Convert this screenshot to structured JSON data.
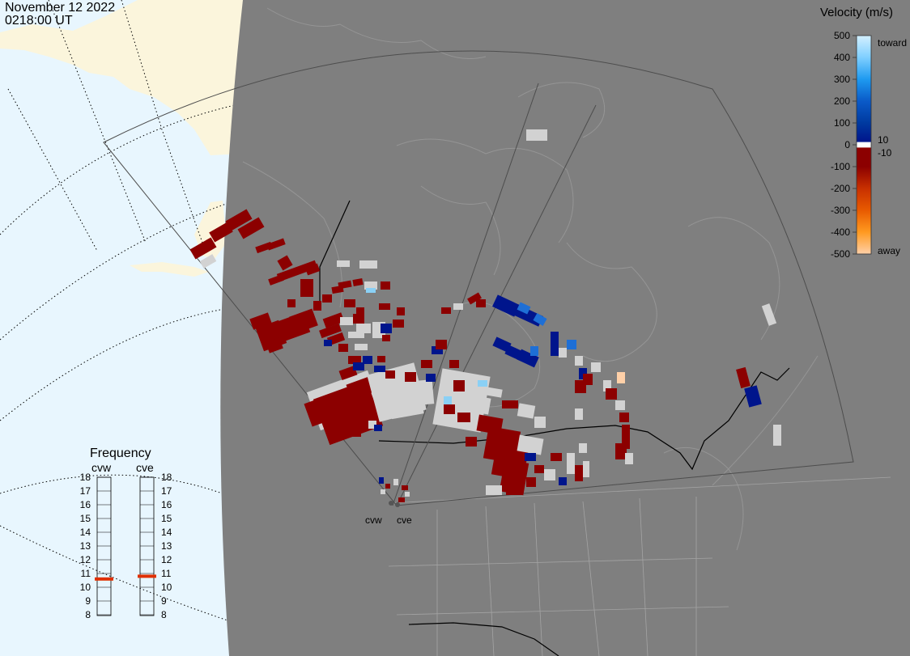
{
  "header": {
    "date": "November 12 2022",
    "time": "0218:00 UT"
  },
  "colors": {
    "ocean": "#e8f6fe",
    "land_outside": "#fbf5dc",
    "map_bg": "#7f7f7f",
    "coast": "#959595",
    "ground_scatter": "#d2d2d2",
    "neg_low": "#8c0000",
    "pos_low": "#00158c",
    "pos_mid": "#1e6fd6",
    "pos_high": "#8ad0f5",
    "away": "#ffd0a8",
    "freq_marker": "#e03000"
  },
  "velocity_scale": {
    "title": "Velocity (m/s)",
    "ticks": [
      "500",
      "400",
      "300",
      "200",
      "100",
      "0",
      "-100",
      "-200",
      "-300",
      "-400",
      "-500"
    ],
    "right_labels": [
      "toward",
      "10",
      "-10",
      "away"
    ],
    "stops": [
      {
        "v": 500,
        "color": "#d4f0ff"
      },
      {
        "v": 400,
        "color": "#7fcfff"
      },
      {
        "v": 300,
        "color": "#1e9af0"
      },
      {
        "v": 200,
        "color": "#0a5ac8"
      },
      {
        "v": 100,
        "color": "#003aa0"
      },
      {
        "v": 10,
        "color": "#00158c"
      },
      {
        "v": 0,
        "color": "#ffffff"
      },
      {
        "v": -10,
        "color": "#8c0000"
      },
      {
        "v": -100,
        "color": "#8c0000"
      },
      {
        "v": -200,
        "color": "#c83000"
      },
      {
        "v": -300,
        "color": "#e85a00"
      },
      {
        "v": -400,
        "color": "#ff9a20"
      },
      {
        "v": -500,
        "color": "#ffd0a8"
      }
    ]
  },
  "frequency_panel": {
    "title": "Frequency",
    "radars": [
      {
        "name": "cvw",
        "value_mhz": 10.6
      },
      {
        "name": "cve",
        "value_mhz": 10.8
      }
    ],
    "levels": [
      "18",
      "17",
      "16",
      "15",
      "14",
      "13",
      "12",
      "11",
      "10",
      "9",
      "8"
    ]
  },
  "radar_labels": [
    "cvw",
    "cve"
  ]
}
